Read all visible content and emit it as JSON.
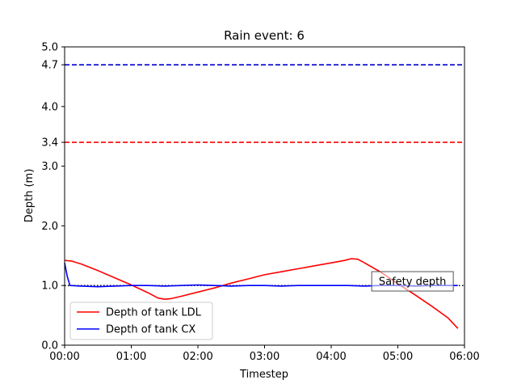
{
  "chart_data": {
    "type": "line",
    "title": "Rain event: 6",
    "xlabel": "Timestep",
    "ylabel": "Depth (m)",
    "x_unit": "hours",
    "xlim": [
      0,
      6
    ],
    "ylim": [
      0,
      5
    ],
    "x_tick_values": [
      0,
      1,
      2,
      3,
      4,
      5,
      6
    ],
    "x_tick_labels": [
      "00:00",
      "01:00",
      "02:00",
      "03:00",
      "04:00",
      "05:00",
      "06:00"
    ],
    "y_tick_values": [
      0.0,
      1.0,
      2.0,
      3.0,
      3.4,
      4.0,
      4.7,
      5.0
    ],
    "y_tick_labels": [
      "0.0",
      "1.0",
      "2.0",
      "3.0",
      "3.4",
      "4.0",
      "4.7",
      "5.0"
    ],
    "grid": false,
    "legend_position": "lower-left",
    "series": [
      {
        "name": "Depth of tank LDL",
        "color": "#ff0000",
        "style": "solid",
        "x": [
          0.0,
          0.1,
          0.25,
          0.5,
          0.75,
          1.0,
          1.25,
          1.4,
          1.5,
          1.6,
          1.75,
          2.0,
          2.25,
          2.5,
          2.75,
          3.0,
          3.25,
          3.5,
          3.75,
          4.0,
          4.2,
          4.3,
          4.4,
          4.5,
          4.75,
          5.0,
          5.25,
          5.5,
          5.75,
          5.9
        ],
        "values": [
          1.42,
          1.41,
          1.36,
          1.25,
          1.13,
          1.01,
          0.88,
          0.79,
          0.77,
          0.78,
          0.82,
          0.89,
          0.96,
          1.04,
          1.11,
          1.18,
          1.23,
          1.28,
          1.33,
          1.38,
          1.42,
          1.45,
          1.44,
          1.38,
          1.22,
          1.03,
          0.85,
          0.66,
          0.46,
          0.28
        ]
      },
      {
        "name": "Depth of tank CX",
        "color": "#0000ff",
        "style": "solid",
        "x": [
          0.0,
          0.04,
          0.08,
          0.25,
          0.5,
          0.75,
          1.0,
          1.25,
          1.5,
          1.75,
          2.0,
          2.25,
          2.5,
          2.75,
          3.0,
          3.25,
          3.5,
          3.75,
          4.0,
          4.25,
          4.5,
          4.75,
          5.0,
          5.25,
          5.5,
          5.75,
          5.9
        ],
        "values": [
          1.38,
          1.15,
          1.0,
          0.99,
          0.98,
          0.99,
          1.0,
          1.0,
          0.99,
          1.0,
          1.01,
          1.0,
          0.99,
          1.0,
          1.0,
          0.99,
          1.0,
          1.0,
          1.0,
          1.0,
          0.99,
          1.0,
          1.0,
          0.99,
          1.0,
          1.0,
          1.0
        ]
      }
    ],
    "reference_lines": [
      {
        "y": 4.7,
        "color": "#0000cd",
        "style": "dashed"
      },
      {
        "y": 3.4,
        "color": "#ff0000",
        "style": "dashed"
      },
      {
        "y": 1.0,
        "color": "#000000",
        "style": "dotted"
      }
    ],
    "annotations": [
      {
        "text": "Safety depth",
        "x": 5.22,
        "y": 1.07
      }
    ]
  }
}
